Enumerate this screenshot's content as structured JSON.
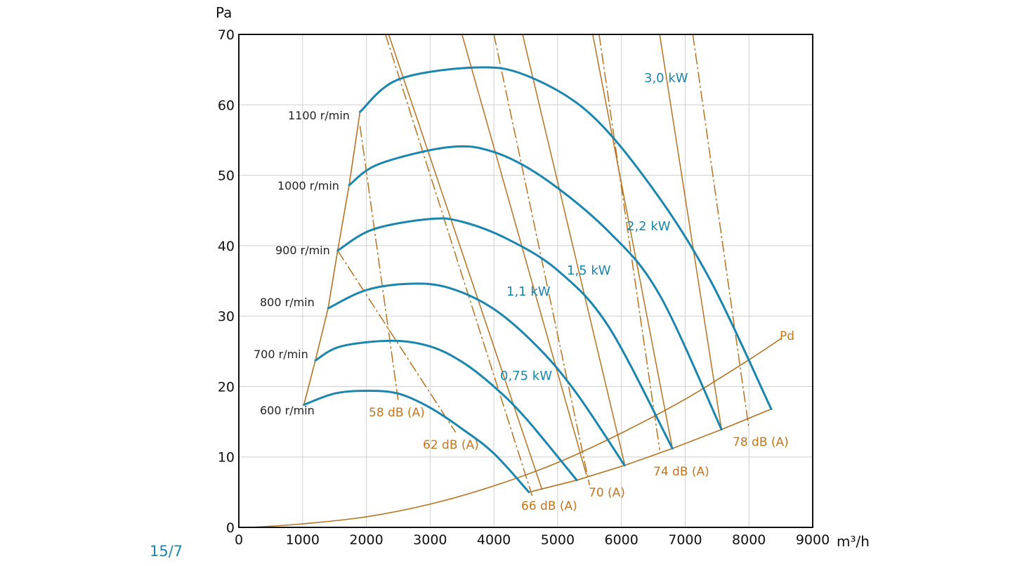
{
  "page_number": "15/7",
  "colors": {
    "fan_curve": "#1a86ad",
    "construction_line": "#b5721f",
    "grid": "#cfcfcf",
    "axis": "#111111"
  },
  "chart_data": {
    "type": "line",
    "xlabel": "m³/h",
    "ylabel": "Pa",
    "xlim": [
      0,
      9000
    ],
    "ylim": [
      0,
      70
    ],
    "x_ticks": [
      "0",
      "1000",
      "2000",
      "3000",
      "4000",
      "5000",
      "6000",
      "7000",
      "8000",
      "9000"
    ],
    "y_ticks": [
      "0",
      "10",
      "20",
      "30",
      "40",
      "50",
      "60",
      "70"
    ],
    "grid": true,
    "fan_curves": [
      {
        "name": "600 r/min",
        "points": [
          [
            1020,
            17.4
          ],
          [
            1500,
            19.0
          ],
          [
            2000,
            19.4
          ],
          [
            2500,
            19.0
          ],
          [
            3000,
            17.0
          ],
          [
            3500,
            14.0
          ],
          [
            4000,
            10.5
          ],
          [
            4550,
            5.0
          ]
        ]
      },
      {
        "name": "700 r/min",
        "points": [
          [
            1200,
            23.7
          ],
          [
            1600,
            25.7
          ],
          [
            2400,
            26.5
          ],
          [
            3000,
            25.7
          ],
          [
            3500,
            23.5
          ],
          [
            4000,
            20.0
          ],
          [
            4500,
            15.5
          ],
          [
            5300,
            6.7
          ]
        ]
      },
      {
        "name": "800 r/min",
        "points": [
          [
            1400,
            31.1
          ],
          [
            2000,
            33.7
          ],
          [
            2700,
            34.6
          ],
          [
            3300,
            34.0
          ],
          [
            4000,
            31.0
          ],
          [
            4700,
            25.5
          ],
          [
            5300,
            19.0
          ],
          [
            6050,
            8.8
          ]
        ]
      },
      {
        "name": "900 r/min",
        "points": [
          [
            1550,
            39.3
          ],
          [
            2100,
            42.3
          ],
          [
            3000,
            43.8
          ],
          [
            3500,
            43.4
          ],
          [
            4200,
            41.0
          ],
          [
            5000,
            36.5
          ],
          [
            5800,
            28.5
          ],
          [
            6800,
            11.2
          ]
        ]
      },
      {
        "name": "1000 r/min",
        "points": [
          [
            1730,
            48.6
          ],
          [
            2200,
            51.6
          ],
          [
            3300,
            54.0
          ],
          [
            4000,
            53.3
          ],
          [
            4800,
            49.5
          ],
          [
            5800,
            42.0
          ],
          [
            6600,
            33.0
          ],
          [
            7570,
            13.9
          ]
        ]
      },
      {
        "name": "1100 r/min",
        "points": [
          [
            1900,
            59.0
          ],
          [
            2500,
            63.6
          ],
          [
            3700,
            65.3
          ],
          [
            4500,
            64.2
          ],
          [
            5500,
            58.8
          ],
          [
            6500,
            48.0
          ],
          [
            7400,
            35.0
          ],
          [
            8350,
            16.8
          ]
        ]
      }
    ],
    "speed_boundary": {
      "points": [
        [
          1020,
          17.4
        ],
        [
          1200,
          23.7
        ],
        [
          1400,
          31.1
        ],
        [
          1550,
          39.3
        ],
        [
          1730,
          48.6
        ],
        [
          1900,
          59.0
        ]
      ]
    },
    "operating_boundary": {
      "points": [
        [
          4550,
          5.0
        ],
        [
          5300,
          6.7
        ],
        [
          6050,
          8.8
        ],
        [
          6800,
          11.2
        ],
        [
          7570,
          13.9
        ],
        [
          8350,
          16.8
        ]
      ]
    },
    "pd_curve": {
      "name": "Pd",
      "points": [
        [
          200,
          0
        ],
        [
          1000,
          0.5
        ],
        [
          2000,
          1.5
        ],
        [
          3000,
          3.3
        ],
        [
          4000,
          5.9
        ],
        [
          5000,
          9.2
        ],
        [
          6000,
          13.4
        ],
        [
          7000,
          18.2
        ],
        [
          8000,
          23.8
        ],
        [
          8500,
          26.8
        ]
      ]
    },
    "power_lines": [
      {
        "name": "0,75 kW",
        "from": [
          2350,
          70
        ],
        "to": [
          4750,
          5.5
        ]
      },
      {
        "name": "1,1 kW",
        "from": [
          3500,
          70
        ],
        "to": [
          5450,
          7.5
        ]
      },
      {
        "name": "1,5 kW",
        "from": [
          4450,
          70
        ],
        "to": [
          6050,
          9.0
        ]
      },
      {
        "name": "2,2 kW",
        "from": [
          5550,
          70
        ],
        "to": [
          6800,
          11.2
        ]
      },
      {
        "name": "3,0 kW",
        "from": [
          6600,
          70
        ],
        "to": [
          7570,
          13.9
        ]
      }
    ],
    "sound_lines": [
      {
        "name": "58 dB (A)",
        "from": [
          1900,
          57.0
        ],
        "to": [
          2500,
          18.0
        ]
      },
      {
        "name": "62 dB (A)",
        "from": [
          1550,
          39.3
        ],
        "to": [
          3400,
          13.5
        ]
      },
      {
        "name": "66 dB (A)",
        "from": [
          2300,
          70
        ],
        "to": [
          4600,
          4.5
        ]
      },
      {
        "name": "70 (A)",
        "from": [
          4000,
          70
        ],
        "to": [
          5500,
          6.0
        ]
      },
      {
        "name": "74 dB (A)",
        "from": [
          5650,
          70
        ],
        "to": [
          6600,
          11.0
        ]
      },
      {
        "name": "78 dB (A)",
        "from": [
          7120,
          70
        ],
        "to": [
          8000,
          14.0
        ]
      }
    ],
    "speed_labels": [
      "600 r/min",
      "700 r/min",
      "800 r/min",
      "900 r/min",
      "1000 r/min",
      "1100 r/min"
    ],
    "power_labels": [
      "0,75 kW",
      "1,1 kW",
      "1,5 kW",
      "2,2 kW",
      "3,0 kW"
    ],
    "sound_labels": [
      "58 dB (A)",
      "62 dB (A)",
      "66 dB (A)",
      "70 (A)",
      "74 dB (A)",
      "78 dB (A)"
    ],
    "pd_label": "Pd"
  }
}
